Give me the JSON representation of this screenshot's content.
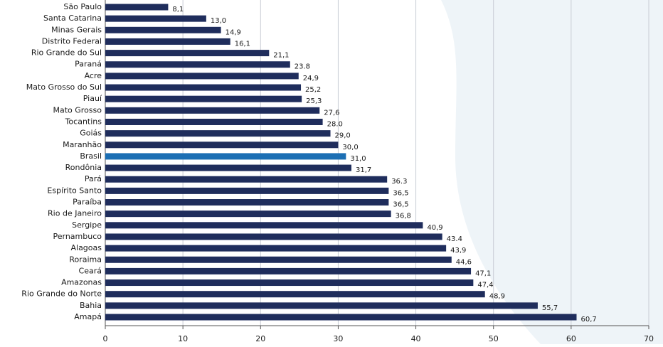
{
  "chart_data": {
    "type": "bar",
    "orientation": "horizontal",
    "categories": [
      "São Paulo",
      "Santa Catarina",
      "Minas Gerais",
      "Distrito Federal",
      "Rio Grande do Sul",
      "Paraná",
      "Acre",
      "Mato Grosso do Sul",
      "Piauí",
      "Mato Grosso",
      "Tocantins",
      "Goiás",
      "Maranhão",
      "Brasil",
      "Rondônia",
      "Pará",
      "Espírito Santo",
      "Paraíba",
      "Rio de Janeiro",
      "Sergipe",
      "Pernambuco",
      "Alagoas",
      "Roraima",
      "Ceará",
      "Amazonas",
      "Rio Grande do Norte",
      "Bahia",
      "Amapá"
    ],
    "values": [
      8.1,
      13.0,
      14.9,
      16.1,
      21.1,
      23.8,
      24.9,
      25.2,
      25.3,
      27.6,
      28.0,
      29.0,
      30.0,
      31.0,
      31.7,
      36.3,
      36.5,
      36.5,
      36.8,
      40.9,
      43.4,
      43.9,
      44.6,
      47.1,
      47.4,
      48.9,
      55.7,
      60.7
    ],
    "value_labels": [
      "8,1",
      "13,0",
      "14,9",
      "16,1",
      "21,1",
      "23.8",
      "24,9",
      "25,2",
      "25,3",
      "27,6",
      "28.0",
      "29,0",
      "30,0",
      "31,0",
      "31,7",
      "36.3",
      "36,5",
      "36,5",
      "36,8",
      "40,9",
      "43.4",
      "43,9",
      "44,6",
      "47,1",
      "47,4",
      "48,9",
      "55,7",
      "60,7"
    ],
    "colors": [
      "#1f2d5c",
      "#1f2d5c",
      "#1f2d5c",
      "#1f2d5c",
      "#1f2d5c",
      "#1f2d5c",
      "#1f2d5c",
      "#1f2d5c",
      "#1f2d5c",
      "#1f2d5c",
      "#1f2d5c",
      "#1f2d5c",
      "#1f2d5c",
      "#1c6fb4",
      "#1f2d5c",
      "#1f2d5c",
      "#1f2d5c",
      "#1f2d5c",
      "#1f2d5c",
      "#1f2d5c",
      "#1f2d5c",
      "#1f2d5c",
      "#1f2d5c",
      "#1f2d5c",
      "#1f2d5c",
      "#1f2d5c",
      "#1f2d5c",
      "#1f2d5c"
    ],
    "xlim": [
      0,
      70
    ],
    "xticks": [
      0,
      10,
      20,
      30,
      40,
      50,
      60,
      70
    ],
    "grid": true
  }
}
